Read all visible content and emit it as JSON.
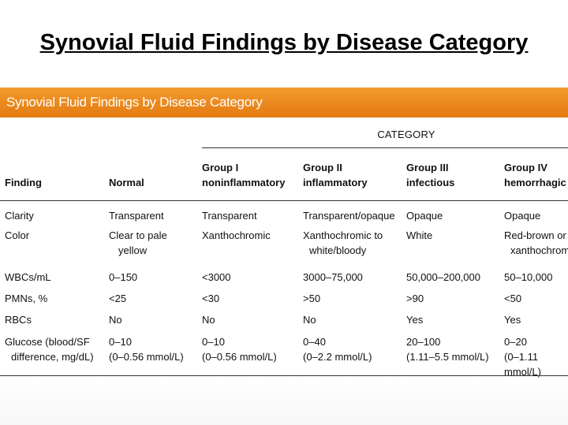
{
  "slide": {
    "title": "Synovial Fluid Findings by Disease Category"
  },
  "table": {
    "banner_title": "Synovial Fluid Findings by Disease Category",
    "category_label": "CATEGORY",
    "headers": {
      "finding": "Finding",
      "normal": "Normal",
      "group1": [
        "Group I",
        "noninflammatory"
      ],
      "group2": [
        "Group II",
        "inflammatory"
      ],
      "group3": [
        "Group III",
        "infectious"
      ],
      "group4": [
        "Group IV",
        "hemorrhagic"
      ]
    },
    "rows": [
      {
        "finding": [
          "Clarity"
        ],
        "normal": [
          "Transparent"
        ],
        "g1": [
          "Transparent"
        ],
        "g2": [
          "Transparent/opaque"
        ],
        "g3": [
          "Opaque"
        ],
        "g4": [
          "Opaque"
        ]
      },
      {
        "finding": [
          "Color"
        ],
        "normal": [
          "Clear to pale",
          "yellow"
        ],
        "g1": [
          "Xanthochromic"
        ],
        "g2": [
          "Xanthochromic to",
          "white/bloody"
        ],
        "g3": [
          "White"
        ],
        "g4": [
          "Red-brown or",
          "xanthochromic"
        ]
      },
      {
        "finding": [
          "WBCs/mL"
        ],
        "normal": [
          "0–150"
        ],
        "g1": [
          "<3000"
        ],
        "g2": [
          "3000–75,000"
        ],
        "g3": [
          "50,000–200,000"
        ],
        "g4": [
          "50–10,000"
        ]
      },
      {
        "finding": [
          "PMNs, %"
        ],
        "normal": [
          "<25"
        ],
        "g1": [
          "<30"
        ],
        "g2": [
          ">50"
        ],
        "g3": [
          ">90"
        ],
        "g4": [
          "<50"
        ]
      },
      {
        "finding": [
          "RBCs"
        ],
        "normal": [
          "No"
        ],
        "g1": [
          "No"
        ],
        "g2": [
          "No"
        ],
        "g3": [
          "Yes"
        ],
        "g4": [
          "Yes"
        ]
      },
      {
        "finding": [
          "Glucose (blood/SF",
          "difference, mg/dL)"
        ],
        "normal": [
          "0–10",
          "(0–0.56 mmol/L)"
        ],
        "g1": [
          "0–10",
          "(0–0.56 mmol/L)"
        ],
        "g2": [
          "0–40",
          "(0–2.2 mmol/L)"
        ],
        "g3": [
          "20–100",
          "(1.11–5.5 mmol/L)"
        ],
        "g4": [
          "0–20",
          "(0–1.11 mmol/L)"
        ]
      }
    ]
  }
}
